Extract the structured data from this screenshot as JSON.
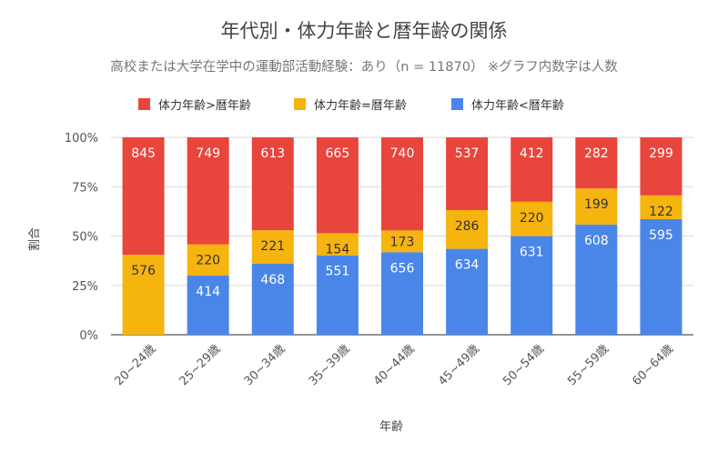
{
  "chart_data": {
    "type": "bar",
    "stacked": "percent",
    "title": "年代別・体力年齢と暦年齢の関係",
    "subtitle": "高校または大学在学中の運動部活動経験：あり（n = 11870） ※グラフ内数字は人数",
    "xlabel": "年齢",
    "ylabel": "割合",
    "ylim": [
      0,
      100
    ],
    "yticks": [
      "0%",
      "25%",
      "50%",
      "75%",
      "100%"
    ],
    "grid": true,
    "legend_position": "top",
    "categories": [
      "20~24歳",
      "25~29歳",
      "30~34歳",
      "35~39歳",
      "40~44歳",
      "45~49歳",
      "50~54歳",
      "55~59歳",
      "60~64歳"
    ],
    "series": [
      {
        "name": "体力年齢<暦年齢",
        "color": "#4a86e8",
        "values": [
          0,
          414,
          468,
          551,
          656,
          634,
          631,
          608,
          595
        ]
      },
      {
        "name": "体力年齢=暦年齢",
        "color": "#f6b40f",
        "values": [
          576,
          220,
          221,
          154,
          173,
          286,
          220,
          199,
          122
        ]
      },
      {
        "name": "体力年齢>暦年齢",
        "color": "#e8453c",
        "values": [
          845,
          749,
          613,
          665,
          740,
          537,
          412,
          282,
          299
        ]
      }
    ],
    "legend_order": [
      2,
      1,
      0
    ]
  }
}
